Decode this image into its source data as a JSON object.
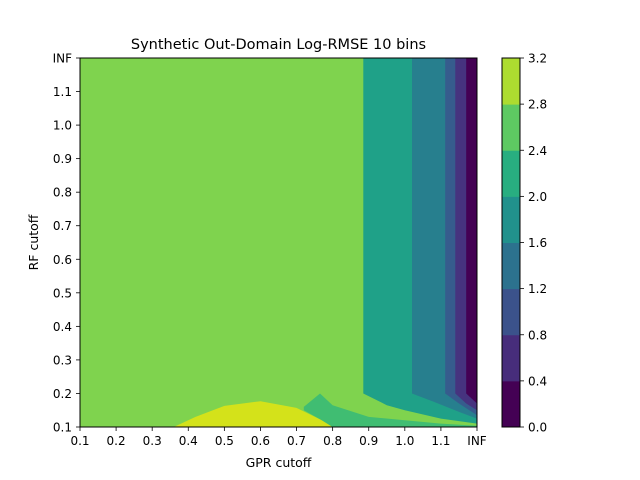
{
  "chart_data": {
    "type": "contourf",
    "title": "Synthetic Out-Domain Log-RMSE 10 bins",
    "xlabel": "GPR cutoff",
    "ylabel": "RF cutoff",
    "x_ticks": [
      "0.1",
      "0.2",
      "0.3",
      "0.4",
      "0.5",
      "0.6",
      "0.7",
      "0.8",
      "0.9",
      "1.0",
      "1.1",
      "INF"
    ],
    "y_ticks": [
      "0.1",
      "0.2",
      "0.3",
      "0.4",
      "0.5",
      "0.6",
      "0.7",
      "0.8",
      "0.9",
      "1.0",
      "1.1",
      "INF"
    ],
    "colorbar": {
      "levels": [
        0.0,
        0.4,
        0.8,
        1.2,
        1.6,
        2.0,
        2.4,
        2.8,
        3.2
      ],
      "tick_labels": [
        "0.0",
        "0.4",
        "0.8",
        "1.2",
        "1.6",
        "2.0",
        "2.4",
        "2.8",
        "3.2"
      ],
      "colors": [
        "#440154",
        "#472d7b",
        "#3b528b",
        "#2c728e",
        "#21918c",
        "#28ae80",
        "#5ec962",
        "#addc30",
        "#fde725"
      ]
    },
    "bands": [
      {
        "range": [
          2.4,
          2.8
        ],
        "color": "#7fd34e",
        "note": "background"
      },
      {
        "range": [
          2.8,
          3.2
        ],
        "color": "#d4e21a",
        "polygon": [
          [
            0.36,
            0.1
          ],
          [
            0.42,
            0.13
          ],
          [
            0.5,
            0.163
          ],
          [
            0.6,
            0.177
          ],
          [
            0.7,
            0.157
          ],
          [
            0.77,
            0.12
          ],
          [
            0.8,
            0.1
          ]
        ]
      },
      {
        "range": [
          2.0,
          2.4
        ],
        "color": "#40bd72",
        "polygon": [
          [
            0.765,
            12
          ],
          [
            0.765,
            0.2
          ],
          [
            0.8,
            0.165
          ],
          [
            0.9,
            0.13
          ],
          [
            1.0,
            0.12
          ],
          [
            1.1,
            0.11
          ],
          [
            1.2,
            0.104
          ],
          [
            1.2,
            0.1
          ],
          [
            0.8,
            0.1
          ],
          [
            0.77,
            0.12
          ],
          [
            0.72,
            0.15
          ],
          [
            0.72,
            0.16
          ],
          [
            0.765,
            0.2
          ]
        ]
      },
      {
        "range": [
          1.6,
          2.0
        ],
        "color": "#1fa188",
        "polygon": [
          [
            0.885,
            12
          ],
          [
            0.885,
            0.2
          ],
          [
            0.95,
            0.165
          ],
          [
            1.0,
            0.15
          ],
          [
            1.1,
            0.125
          ],
          [
            1.2,
            0.11
          ],
          [
            1.2,
            12
          ]
        ]
      },
      {
        "range": [
          1.2,
          1.6
        ],
        "color": "#277f8e",
        "polygon": [
          [
            1.02,
            12
          ],
          [
            1.02,
            0.2
          ],
          [
            1.08,
            0.175
          ],
          [
            1.15,
            0.145
          ],
          [
            1.2,
            0.125
          ],
          [
            1.2,
            12
          ]
        ]
      },
      {
        "range": [
          0.8,
          1.2
        ],
        "color": "#365c8d",
        "polygon": [
          [
            1.112,
            12
          ],
          [
            1.112,
            0.2
          ],
          [
            1.15,
            0.17
          ],
          [
            1.2,
            0.135
          ],
          [
            1.2,
            12
          ]
        ]
      },
      {
        "range": [
          0.4,
          0.8
        ],
        "color": "#46337f",
        "polygon": [
          [
            1.14,
            12
          ],
          [
            1.14,
            0.2
          ],
          [
            1.17,
            0.17
          ],
          [
            1.2,
            0.15
          ],
          [
            1.2,
            12
          ]
        ]
      },
      {
        "range": [
          0.0,
          0.4
        ],
        "color": "#440154",
        "polygon": [
          [
            1.17,
            12
          ],
          [
            1.17,
            0.2
          ],
          [
            1.2,
            0.17
          ],
          [
            1.2,
            12
          ]
        ]
      }
    ]
  }
}
